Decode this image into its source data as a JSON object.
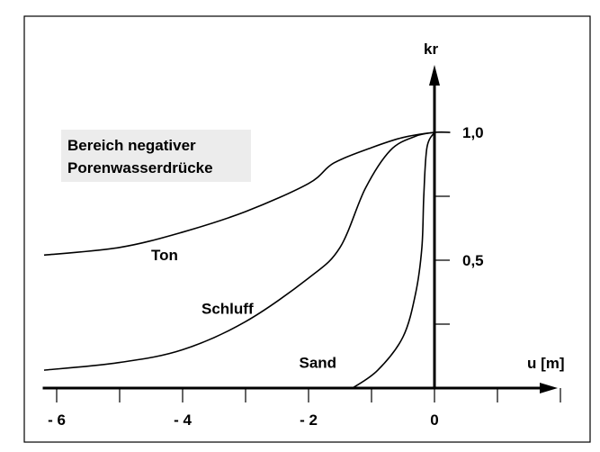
{
  "chart_data": {
    "type": "line",
    "x_axis_label": "u [m]",
    "y_axis_label": "kr",
    "x_ticks": [
      {
        "value": -6,
        "label": "- 6"
      },
      {
        "value": -4,
        "label": "- 4"
      },
      {
        "value": -2,
        "label": "- 2"
      },
      {
        "value": 0,
        "label": "0"
      }
    ],
    "x_minor_ticks": [
      -5,
      -3,
      -1,
      1,
      2
    ],
    "y_ticks": [
      {
        "value": 1.0,
        "label": "1,0"
      },
      {
        "value": 0.5,
        "label": "0,5"
      }
    ],
    "y_minor_ticks": [
      0.25,
      0.75
    ],
    "xlim": [
      -6.25,
      2.0
    ],
    "ylim": [
      0,
      1.0
    ],
    "grid": false,
    "annotation": {
      "lines": [
        "Bereich negativer",
        "Porenwasserdrücke"
      ]
    },
    "series": [
      {
        "name": "Ton",
        "label_at": {
          "x": -4.5,
          "y": 0.5
        },
        "points": [
          [
            -6.2,
            0.52
          ],
          [
            -5.0,
            0.55
          ],
          [
            -4.0,
            0.61
          ],
          [
            -3.0,
            0.69
          ],
          [
            -2.0,
            0.8
          ],
          [
            -1.6,
            0.88
          ],
          [
            -1.0,
            0.94
          ],
          [
            -0.5,
            0.98
          ],
          [
            0.0,
            1.0
          ],
          [
            0.25,
            1.0
          ]
        ]
      },
      {
        "name": "Schluff",
        "label_at": {
          "x": -3.7,
          "y": 0.29
        },
        "points": [
          [
            -6.2,
            0.07
          ],
          [
            -5.0,
            0.1
          ],
          [
            -4.0,
            0.15
          ],
          [
            -3.0,
            0.26
          ],
          [
            -2.0,
            0.43
          ],
          [
            -1.5,
            0.55
          ],
          [
            -1.1,
            0.78
          ],
          [
            -0.7,
            0.93
          ],
          [
            -0.3,
            0.985
          ],
          [
            0.0,
            1.0
          ]
        ]
      },
      {
        "name": "Sand",
        "label_at": {
          "x": -2.15,
          "y": 0.08
        },
        "points": [
          [
            -1.3,
            0.0
          ],
          [
            -0.9,
            0.07
          ],
          [
            -0.5,
            0.2
          ],
          [
            -0.3,
            0.37
          ],
          [
            -0.2,
            0.55
          ],
          [
            -0.17,
            0.75
          ],
          [
            -0.12,
            0.94
          ],
          [
            0.0,
            1.0
          ]
        ]
      }
    ]
  }
}
